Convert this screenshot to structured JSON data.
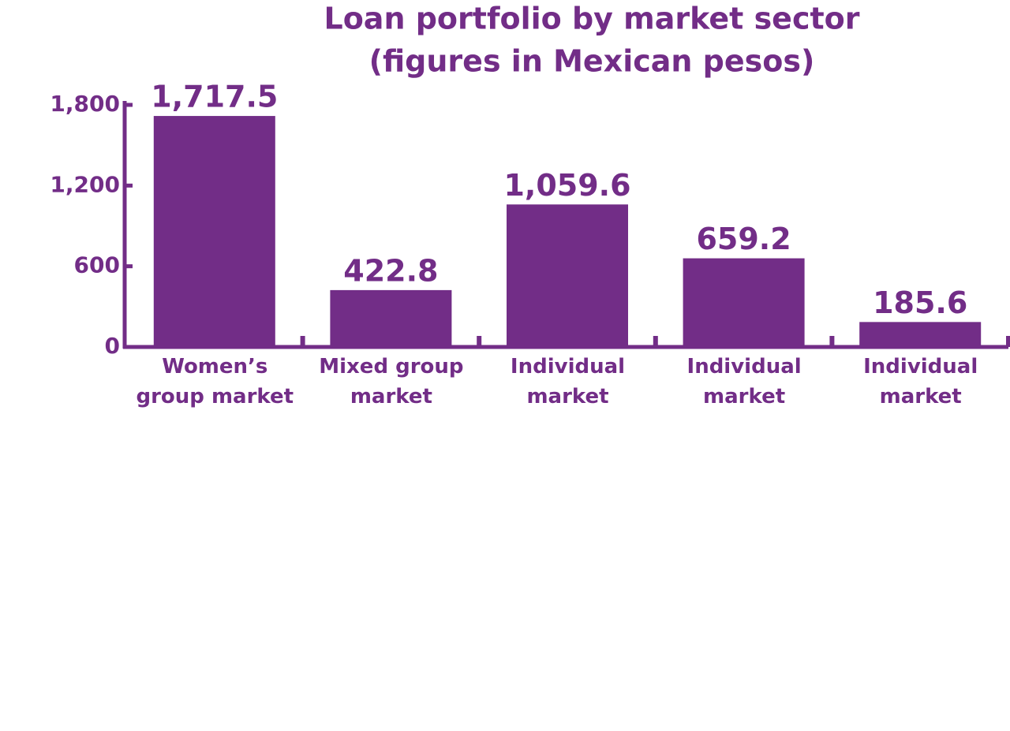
{
  "chart_data": {
    "type": "bar",
    "title": "Loan portfolio by market sector",
    "subtitle": "(figures in Mexican pesos)",
    "categories": [
      "Women’s group market",
      "Mixed group market",
      "Individual market",
      "Individual market",
      "Individual market"
    ],
    "values": [
      1717.5,
      422.8,
      1059.6,
      659.2,
      185.6
    ],
    "value_labels": [
      "1,717.5",
      "422.8",
      "1,059.6",
      "659.2",
      "185.6"
    ],
    "color": "#722d87",
    "ylim": [
      0,
      1800
    ],
    "yticks": [
      0,
      600,
      {
        "value": 1200,
        "label": "1,200"
      },
      {
        "value": 1800,
        "label": "1,800"
      }
    ]
  }
}
